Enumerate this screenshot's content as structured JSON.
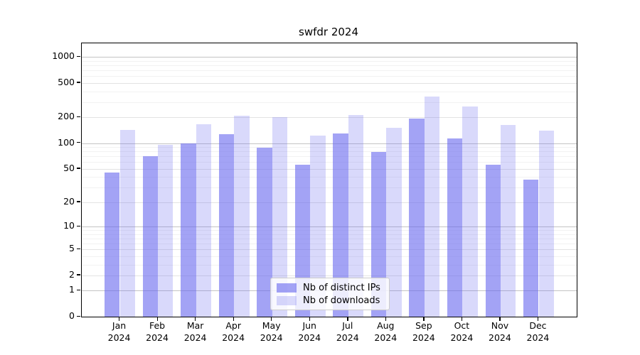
{
  "title": "swfdr 2024",
  "chart_data": {
    "type": "bar",
    "title": "swfdr 2024",
    "categories": [
      "Jan",
      "Feb",
      "Mar",
      "Apr",
      "May",
      "Jun",
      "Jul",
      "Aug",
      "Sep",
      "Oct",
      "Nov",
      "Dec"
    ],
    "category_year": "2024",
    "series": [
      {
        "name": "Nb of distinct IPs",
        "color": "rgba(102,102,238,0.6)",
        "values": [
          45,
          70,
          100,
          127,
          89,
          56,
          130,
          79,
          195,
          114,
          56,
          37
        ]
      },
      {
        "name": "Nb of downloads",
        "color": "rgba(102,102,238,0.25)",
        "values": [
          143,
          95,
          165,
          209,
          201,
          122,
          213,
          151,
          346,
          269,
          162,
          141
        ]
      }
    ],
    "xlabel": "",
    "ylabel": "",
    "y_axis": {
      "scale": "log10(1+v)",
      "tick_values": [
        0,
        1,
        2,
        5,
        10,
        20,
        50,
        100,
        200,
        500,
        1000
      ],
      "decade_values": [
        1,
        10,
        100,
        1000
      ],
      "minor_values": [
        3,
        4,
        6,
        7,
        8,
        9,
        30,
        40,
        60,
        70,
        80,
        90,
        300,
        400,
        600,
        700,
        800,
        900
      ],
      "units_max": 3.158
    },
    "grid": "horizontal",
    "legend_position": "lower center"
  },
  "legend": {
    "item1": "Nb of distinct IPs",
    "item2": "Nb of downloads"
  }
}
